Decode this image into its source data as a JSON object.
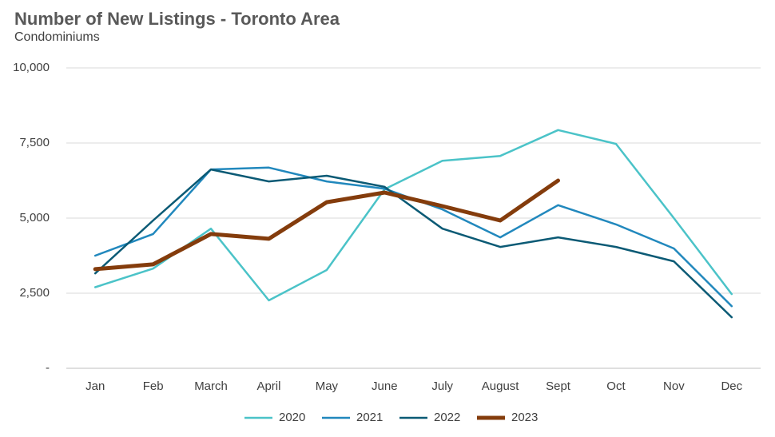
{
  "chart_data": {
    "type": "line",
    "title": "Number of New Listings - Toronto Area",
    "subtitle": "Condominiums",
    "categories": [
      "Jan",
      "Feb",
      "March",
      "April",
      "May",
      "June",
      "July",
      "August",
      "Sept",
      "Oct",
      "Nov",
      "Dec"
    ],
    "series": [
      {
        "name": "2020",
        "color": "#4bc3c8",
        "width": 2.5,
        "values": [
          2700,
          3320,
          4650,
          2260,
          3270,
          5960,
          6910,
          7070,
          7930,
          7470,
          5000,
          2470
        ]
      },
      {
        "name": "2021",
        "color": "#2188bd",
        "width": 2.5,
        "values": [
          3750,
          4470,
          6620,
          6680,
          6220,
          5980,
          5290,
          4360,
          5430,
          4790,
          3990,
          2070
        ]
      },
      {
        "name": "2022",
        "color": "#0b5a75",
        "width": 2.5,
        "values": [
          3160,
          4920,
          6620,
          6220,
          6410,
          6040,
          4650,
          4040,
          4360,
          4040,
          3560,
          1700
        ]
      },
      {
        "name": "2023",
        "color": "#843c0c",
        "width": 5,
        "values": [
          3300,
          3460,
          4470,
          4310,
          5530,
          5850,
          5400,
          4920,
          6250,
          null,
          null,
          null
        ]
      }
    ],
    "ylim": [
      0,
      10000
    ],
    "yticks": [
      {
        "value": 0,
        "label": "-"
      },
      {
        "value": 2500,
        "label": "2,500"
      },
      {
        "value": 5000,
        "label": "5,000"
      },
      {
        "value": 7500,
        "label": "7,500"
      },
      {
        "value": 10000,
        "label": "10,000"
      }
    ],
    "grid": true,
    "legend": "bottom"
  }
}
